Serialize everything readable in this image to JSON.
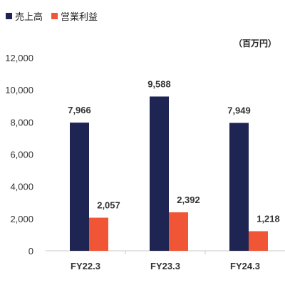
{
  "legend": [
    {
      "label": "売上高",
      "color": "#1f2552"
    },
    {
      "label": "営業利益",
      "color": "#f05536"
    }
  ],
  "unit_label": "（百万円）",
  "chart_data": {
    "type": "bar",
    "categories": [
      "FY22.3",
      "FY23.3",
      "FY24.3"
    ],
    "series": [
      {
        "name": "売上高",
        "values": [
          7966,
          9588,
          7949
        ],
        "labels": [
          "7,966",
          "9,588",
          "7,949"
        ],
        "color": "#1f2552"
      },
      {
        "name": "営業利益",
        "values": [
          2057,
          2392,
          1218
        ],
        "labels": [
          "2,057",
          "2,392",
          "1,218"
        ],
        "color": "#f05536"
      }
    ],
    "ylim": [
      0,
      12000
    ],
    "yticks": [
      0,
      2000,
      4000,
      6000,
      8000,
      10000,
      12000
    ],
    "ytick_labels": [
      "0",
      "2,000",
      "4,000",
      "6,000",
      "8,000",
      "10,000",
      "12,000"
    ],
    "grid": false,
    "legend_position": "top-left"
  }
}
